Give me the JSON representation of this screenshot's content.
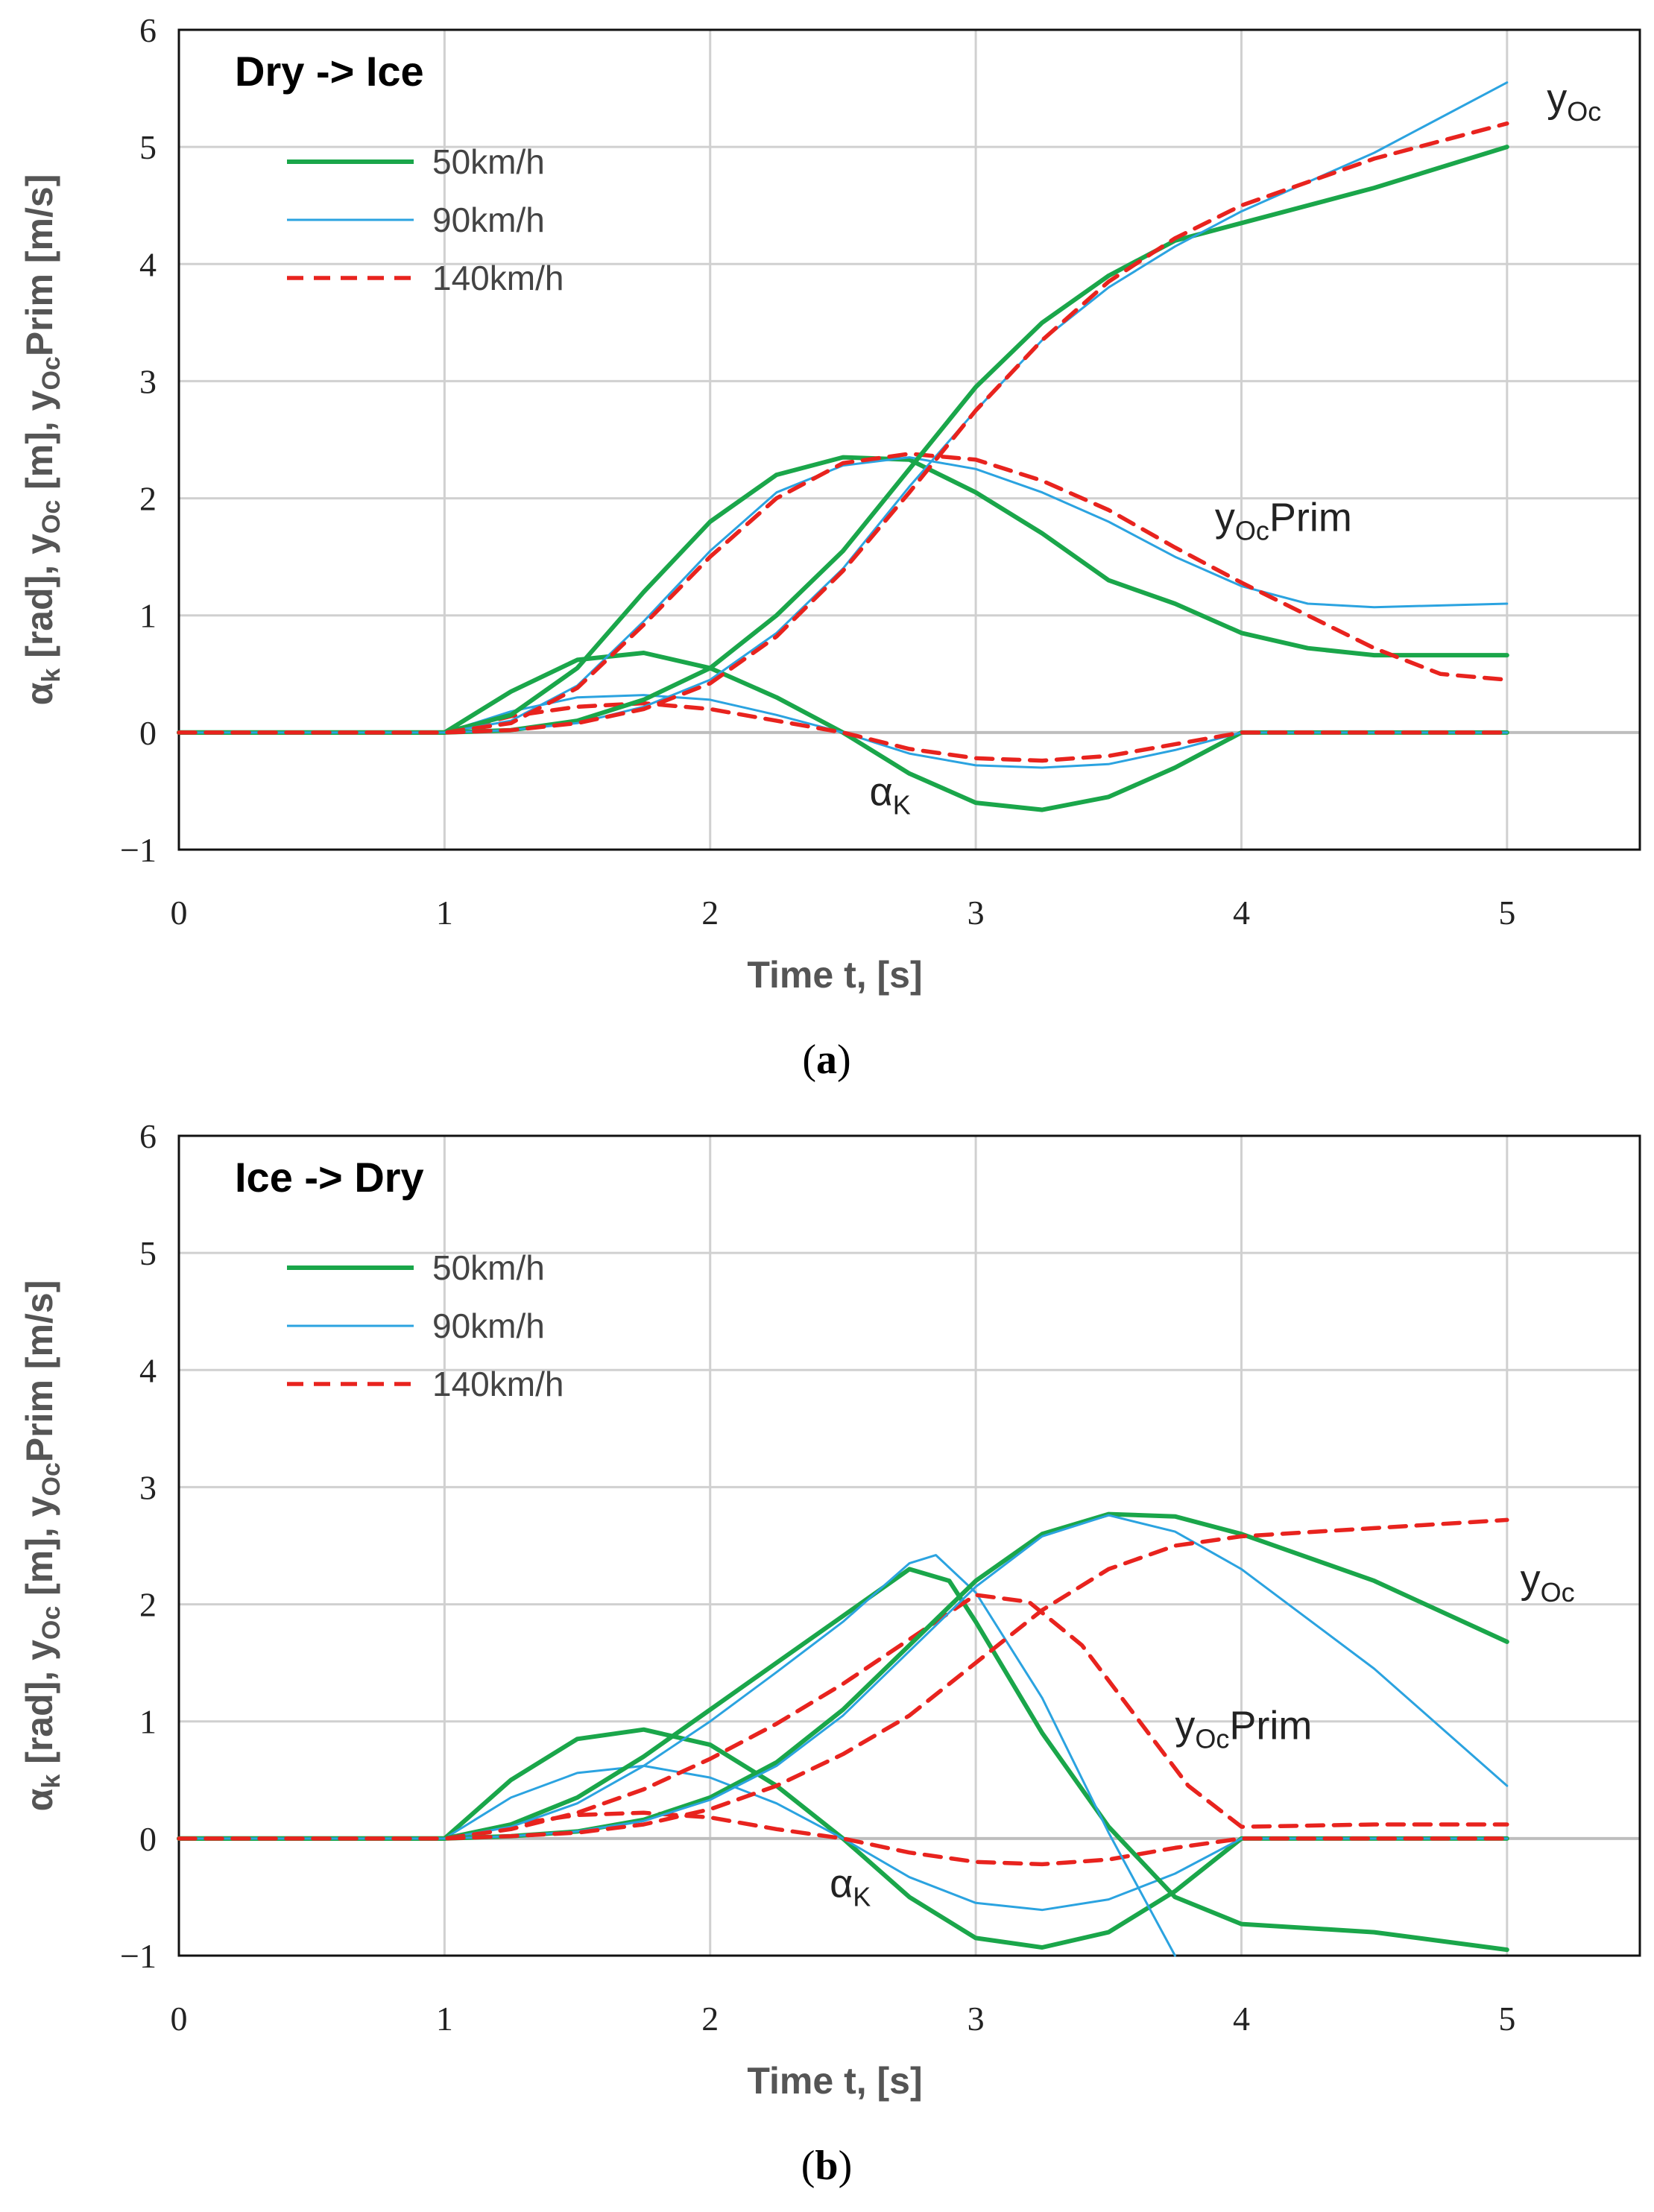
{
  "chart_data": [
    {
      "id": "a",
      "type": "line",
      "title": "Dry -> Ice",
      "caption_letter": "a",
      "xlabel": "Time t, [s]",
      "ylabel_parts": {
        "alpha": "α",
        "k": "k",
        "rad": " [rad], y",
        "oc": "Oc",
        "m": " [m], y",
        "oc2": "Oc",
        "prim": "Prim [m/s]"
      },
      "xlim": [
        0,
        5.5
      ],
      "ylim": [
        -1,
        6
      ],
      "xticks": [
        "0",
        "1",
        "2",
        "3",
        "4",
        "5"
      ],
      "yticks": [
        "−1",
        "0",
        "1",
        "2",
        "3",
        "4",
        "5",
        "6"
      ],
      "grid": true,
      "legend_position": "top-left",
      "legend": [
        {
          "label": "50km/h",
          "color": "#1aa64a",
          "style": "solid-thick"
        },
        {
          "label": "90km/h",
          "color": "#2ba3e0",
          "style": "solid-thin"
        },
        {
          "label": "140km/h",
          "color": "#e8231e",
          "style": "dashed"
        }
      ],
      "annotations": [
        {
          "id": "yoc",
          "main": "y",
          "sub": "Oc",
          "tail": "",
          "at": [
            5.15,
            5.3
          ]
        },
        {
          "id": "yocprim",
          "main": "y",
          "sub": "Oc",
          "tail": "Prim",
          "at": [
            3.9,
            1.72
          ]
        },
        {
          "id": "alpha",
          "main": "α",
          "sub": "K",
          "tail": "",
          "at": [
            2.6,
            -0.62
          ]
        }
      ],
      "series": [
        {
          "name": "alpha_k 50km/h",
          "group": "50km/h",
          "x": [
            0,
            1,
            1.25,
            1.5,
            1.75,
            2,
            2.25,
            2.5,
            2.75,
            3,
            3.25,
            3.5,
            3.75,
            4,
            4.5,
            5
          ],
          "y": [
            0,
            0,
            0.35,
            0.62,
            0.68,
            0.55,
            0.3,
            0,
            -0.35,
            -0.6,
            -0.66,
            -0.55,
            -0.3,
            0,
            0,
            0
          ]
        },
        {
          "name": "alpha_k 90km/h",
          "group": "90km/h",
          "x": [
            0,
            1,
            1.25,
            1.5,
            1.75,
            2,
            2.25,
            2.5,
            2.75,
            3,
            3.25,
            3.5,
            3.75,
            4,
            4.5,
            5
          ],
          "y": [
            0,
            0,
            0.18,
            0.3,
            0.32,
            0.28,
            0.15,
            0,
            -0.18,
            -0.28,
            -0.3,
            -0.27,
            -0.15,
            0,
            0,
            0
          ]
        },
        {
          "name": "alpha_k 140km/h",
          "group": "140km/h",
          "x": [
            0,
            1,
            1.25,
            1.5,
            1.75,
            2,
            2.25,
            2.5,
            2.75,
            3,
            3.25,
            3.5,
            3.75,
            4,
            4.5,
            5
          ],
          "y": [
            0,
            0,
            0.14,
            0.22,
            0.25,
            0.2,
            0.1,
            0,
            -0.14,
            -0.22,
            -0.24,
            -0.2,
            -0.1,
            0,
            0,
            0
          ]
        },
        {
          "name": "yOcPrim 50km/h",
          "group": "50km/h",
          "x": [
            0,
            1,
            1.25,
            1.5,
            1.75,
            2,
            2.25,
            2.5,
            2.75,
            3,
            3.25,
            3.5,
            3.75,
            4,
            4.25,
            4.5,
            5
          ],
          "y": [
            0,
            0,
            0.15,
            0.55,
            1.2,
            1.8,
            2.2,
            2.35,
            2.33,
            2.05,
            1.7,
            1.3,
            1.1,
            0.85,
            0.72,
            0.66,
            0.66
          ]
        },
        {
          "name": "yOcPrim 90km/h",
          "group": "90km/h",
          "x": [
            0,
            1,
            1.25,
            1.5,
            1.75,
            2,
            2.25,
            2.5,
            2.75,
            3,
            3.25,
            3.5,
            3.75,
            4,
            4.25,
            4.5,
            5
          ],
          "y": [
            0,
            0,
            0.1,
            0.4,
            0.95,
            1.55,
            2.05,
            2.28,
            2.35,
            2.25,
            2.05,
            1.8,
            1.5,
            1.25,
            1.1,
            1.07,
            1.1
          ]
        },
        {
          "name": "yOcPrim 140km/h",
          "group": "140km/h",
          "x": [
            0,
            1,
            1.25,
            1.5,
            1.75,
            2,
            2.25,
            2.5,
            2.75,
            3,
            3.25,
            3.5,
            3.75,
            4,
            4.25,
            4.5,
            4.75,
            5
          ],
          "y": [
            0,
            0,
            0.08,
            0.38,
            0.92,
            1.5,
            2.0,
            2.3,
            2.38,
            2.33,
            2.15,
            1.9,
            1.58,
            1.28,
            1.0,
            0.72,
            0.5,
            0.45
          ]
        },
        {
          "name": "yOc 50km/h",
          "group": "50km/h",
          "x": [
            0,
            1,
            1.25,
            1.5,
            1.75,
            2,
            2.25,
            2.5,
            2.75,
            3,
            3.25,
            3.5,
            3.75,
            4,
            4.5,
            5
          ],
          "y": [
            0,
            0,
            0.02,
            0.1,
            0.28,
            0.55,
            1.0,
            1.55,
            2.25,
            2.95,
            3.5,
            3.9,
            4.2,
            4.35,
            4.65,
            5.0
          ]
        },
        {
          "name": "yOc 90km/h",
          "group": "90km/h",
          "x": [
            0,
            1,
            1.25,
            1.5,
            1.75,
            2,
            2.25,
            2.5,
            2.75,
            3,
            3.25,
            3.5,
            3.75,
            4,
            4.5,
            5
          ],
          "y": [
            0,
            0,
            0.02,
            0.08,
            0.22,
            0.45,
            0.85,
            1.4,
            2.1,
            2.75,
            3.35,
            3.8,
            4.15,
            4.45,
            4.95,
            5.55
          ]
        },
        {
          "name": "yOc 140km/h",
          "group": "140km/h",
          "x": [
            0,
            1,
            1.25,
            1.5,
            1.75,
            2,
            2.25,
            2.5,
            2.75,
            3,
            3.25,
            3.5,
            3.75,
            4,
            4.5,
            5
          ],
          "y": [
            0,
            0,
            0.02,
            0.08,
            0.2,
            0.42,
            0.82,
            1.38,
            2.05,
            2.75,
            3.35,
            3.85,
            4.22,
            4.5,
            4.9,
            5.2
          ]
        }
      ]
    },
    {
      "id": "b",
      "type": "line",
      "title": "Ice -> Dry",
      "caption_letter": "b",
      "xlabel": "Time t, [s]",
      "ylabel_parts": {
        "alpha": "α",
        "k": "k",
        "rad": " [rad], y",
        "oc": "Oc",
        "m": " [m], y",
        "oc2": "Oc",
        "prim": "Prim [m/s]"
      },
      "xlim": [
        0,
        5.5
      ],
      "ylim": [
        -1,
        6
      ],
      "xticks": [
        "0",
        "1",
        "2",
        "3",
        "4",
        "5"
      ],
      "yticks": [
        "−1",
        "0",
        "1",
        "2",
        "3",
        "4",
        "5",
        "6"
      ],
      "grid": true,
      "legend_position": "top-left",
      "legend": [
        {
          "label": "50km/h",
          "color": "#1aa64a",
          "style": "solid-thick"
        },
        {
          "label": "90km/h",
          "color": "#2ba3e0",
          "style": "solid-thin"
        },
        {
          "label": "140km/h",
          "color": "#e8231e",
          "style": "dashed"
        }
      ],
      "annotations": [
        {
          "id": "yoc",
          "main": "y",
          "sub": "Oc",
          "tail": "",
          "at": [
            5.05,
            2.1
          ]
        },
        {
          "id": "yocprim",
          "main": "y",
          "sub": "Oc",
          "tail": "Prim",
          "at": [
            3.75,
            0.85
          ]
        },
        {
          "id": "alpha",
          "main": "α",
          "sub": "K",
          "tail": "",
          "at": [
            2.45,
            -0.5
          ]
        }
      ],
      "series": [
        {
          "name": "alpha_k 50km/h",
          "group": "50km/h",
          "x": [
            0,
            1,
            1.25,
            1.5,
            1.75,
            2,
            2.25,
            2.5,
            2.75,
            3,
            3.25,
            3.5,
            3.75,
            4,
            4.5,
            5
          ],
          "y": [
            0,
            0,
            0.5,
            0.85,
            0.93,
            0.8,
            0.45,
            0,
            -0.5,
            -0.85,
            -0.93,
            -0.8,
            -0.45,
            0,
            0,
            0
          ]
        },
        {
          "name": "alpha_k 90km/h",
          "group": "90km/h",
          "x": [
            0,
            1,
            1.25,
            1.5,
            1.75,
            2,
            2.25,
            2.5,
            2.75,
            3,
            3.25,
            3.5,
            3.75,
            4,
            4.5,
            5
          ],
          "y": [
            0,
            0,
            0.35,
            0.56,
            0.62,
            0.52,
            0.3,
            0,
            -0.33,
            -0.55,
            -0.61,
            -0.52,
            -0.3,
            0,
            0,
            0
          ]
        },
        {
          "name": "alpha_k 140km/h",
          "group": "140km/h",
          "x": [
            0,
            1,
            1.25,
            1.5,
            1.75,
            2,
            2.25,
            2.5,
            2.75,
            3,
            3.25,
            3.5,
            3.75,
            4,
            4.5,
            5
          ],
          "y": [
            0,
            0,
            0.12,
            0.2,
            0.22,
            0.18,
            0.08,
            0,
            -0.12,
            -0.2,
            -0.22,
            -0.18,
            -0.08,
            0,
            0,
            0
          ]
        },
        {
          "name": "yOcPrim 50km/h",
          "group": "50km/h",
          "x": [
            0,
            1,
            1.25,
            1.5,
            1.75,
            2,
            2.25,
            2.5,
            2.75,
            2.9,
            3,
            3.25,
            3.5,
            3.75,
            4,
            4.5,
            5
          ],
          "y": [
            0,
            0,
            0.12,
            0.35,
            0.7,
            1.1,
            1.5,
            1.9,
            2.3,
            2.2,
            1.85,
            0.9,
            0.1,
            -0.5,
            -0.73,
            -0.8,
            -0.95
          ]
        },
        {
          "name": "yOcPrim 90km/h",
          "group": "90km/h",
          "x": [
            0,
            1,
            1.25,
            1.5,
            1.75,
            2,
            2.25,
            2.5,
            2.75,
            2.85,
            3,
            3.25,
            3.5,
            3.75
          ],
          "y": [
            0,
            0,
            0.1,
            0.3,
            0.62,
            1.0,
            1.42,
            1.85,
            2.35,
            2.42,
            2.1,
            1.2,
            0.05,
            -1.0
          ]
        },
        {
          "name": "yOcPrim 140km/h",
          "group": "140km/h",
          "x": [
            0,
            1,
            1.25,
            1.5,
            1.75,
            2,
            2.25,
            2.5,
            2.75,
            3,
            3.2,
            3.4,
            3.6,
            3.8,
            4,
            4.5,
            5
          ],
          "y": [
            0,
            0,
            0.08,
            0.22,
            0.42,
            0.68,
            0.98,
            1.32,
            1.7,
            2.08,
            2.02,
            1.65,
            1.05,
            0.45,
            0.1,
            0.12,
            0.12
          ]
        },
        {
          "name": "yOc 50km/h",
          "group": "50km/h",
          "x": [
            0,
            1,
            1.25,
            1.5,
            1.75,
            2,
            2.25,
            2.5,
            2.75,
            3,
            3.25,
            3.5,
            3.75,
            4,
            4.5,
            5
          ],
          "y": [
            0,
            0,
            0.02,
            0.06,
            0.16,
            0.35,
            0.65,
            1.1,
            1.65,
            2.2,
            2.6,
            2.77,
            2.75,
            2.6,
            2.2,
            1.68
          ]
        },
        {
          "name": "yOc 90km/h",
          "group": "90km/h",
          "x": [
            0,
            1,
            1.25,
            1.5,
            1.75,
            2,
            2.25,
            2.5,
            2.75,
            3,
            3.25,
            3.5,
            3.75,
            4,
            4.5,
            5
          ],
          "y": [
            0,
            0,
            0.02,
            0.06,
            0.15,
            0.33,
            0.62,
            1.05,
            1.6,
            2.15,
            2.58,
            2.76,
            2.62,
            2.3,
            1.45,
            0.45
          ]
        },
        {
          "name": "yOc 140km/h",
          "group": "140km/h",
          "x": [
            0,
            1,
            1.25,
            1.5,
            1.75,
            2,
            2.25,
            2.5,
            2.75,
            3,
            3.25,
            3.5,
            3.75,
            4,
            4.5,
            5
          ],
          "y": [
            0,
            0,
            0.02,
            0.05,
            0.12,
            0.25,
            0.45,
            0.72,
            1.05,
            1.5,
            1.95,
            2.3,
            2.5,
            2.58,
            2.65,
            2.72
          ]
        }
      ]
    }
  ]
}
